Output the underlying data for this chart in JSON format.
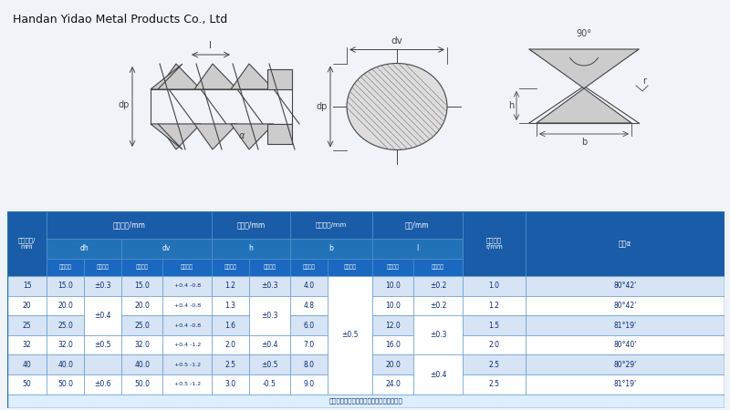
{
  "company": "Handan Yidao Metal Products Co., Ltd",
  "note": "注：螺纹底宽允许偏差属于轧辊设计参数。",
  "bg_color": "#f0f4f8",
  "header_bg": "#1a5ca8",
  "subheader_bg": "#2272b8",
  "sub2_bg": "#1a68c0",
  "cell_bg_alt": "#d6e4f5",
  "cell_bg": "#ffffff",
  "border_color": "#2272b8",
  "text_white": "#ffffff",
  "text_dark": "#0a2a6e",
  "rows": [
    {
      "nom": "15",
      "dh_nom": "15.0",
      "dh_tol": "±0.3",
      "dv_nom": "15.0",
      "dv_tol": "+0.4 -0.8",
      "h_nom": "1.2",
      "h_tol": "±0.3",
      "b_nom": "4.0",
      "l_nom": "10.0",
      "l_tol": "±0.2",
      "r": "1.0",
      "angle": "80°42'"
    },
    {
      "nom": "20",
      "dh_nom": "20.0",
      "dh_tol": "",
      "dv_nom": "20.0",
      "dv_tol": "+0.4 -0.8",
      "h_nom": "1.3",
      "h_tol": "",
      "b_nom": "4.8",
      "l_nom": "10.0",
      "l_tol": "±0.2",
      "r": "1.2",
      "angle": "80°42'"
    },
    {
      "nom": "25",
      "dh_nom": "25.0",
      "dh_tol": "±0.4",
      "dv_nom": "25.0",
      "dv_tol": "+0.4 -0.8",
      "h_nom": "1.6",
      "h_tol": "±0.3",
      "b_nom": "6.0",
      "l_nom": "12.0",
      "l_tol": "",
      "r": "1.5",
      "angle": "81°19'"
    },
    {
      "nom": "32",
      "dh_nom": "32.0",
      "dh_tol": "±0.5",
      "dv_nom": "32.0",
      "dv_tol": "+0.4 -1.2",
      "h_nom": "2.0",
      "h_tol": "±0.4",
      "b_nom": "7.0",
      "l_nom": "16.0",
      "l_tol": "±0.3",
      "r": "2.0",
      "angle": "80°40'"
    },
    {
      "nom": "40",
      "dh_nom": "40.0",
      "dh_tol": "",
      "dv_nom": "40.0",
      "dv_tol": "+0.5 -1.2",
      "h_nom": "2.5",
      "h_tol": "±0.5",
      "b_nom": "8.0",
      "l_nom": "20.0",
      "l_tol": "",
      "r": "2.5",
      "angle": "80°29'"
    },
    {
      "nom": "50",
      "dh_nom": "50.0",
      "dh_tol": "±0.6",
      "dv_nom": "50.0",
      "dv_tol": "+0.5 -1.2",
      "h_nom": "3.0",
      "h_tol": "-0.5",
      "b_nom": "9.0",
      "l_nom": "24.0",
      "l_tol": "±0.4",
      "r": "2.5",
      "angle": "81°19'"
    }
  ]
}
